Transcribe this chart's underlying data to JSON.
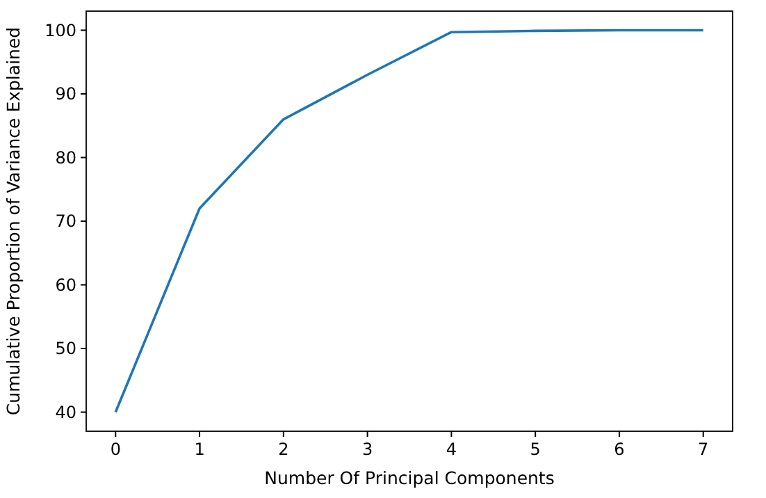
{
  "chart_data": {
    "type": "line",
    "xlabel": "Number Of Principal Components",
    "ylabel": "Cumulative Proportion of Variance Explained",
    "x": [
      0,
      1,
      2,
      3,
      4,
      5,
      6,
      7
    ],
    "series": [
      {
        "color": "#1f77b4",
        "values": [
          40,
          72,
          86,
          93,
          99.7,
          99.9,
          100,
          100
        ]
      }
    ],
    "xlim": [
      -0.35,
      7.35
    ],
    "xticks": [
      0,
      1,
      2,
      3,
      4,
      5,
      6,
      7
    ],
    "ylim": [
      37,
      103
    ],
    "yticks": [
      40,
      50,
      60,
      70,
      80,
      90,
      100
    ],
    "grid": false,
    "marker": "none",
    "line_style": "solid"
  }
}
